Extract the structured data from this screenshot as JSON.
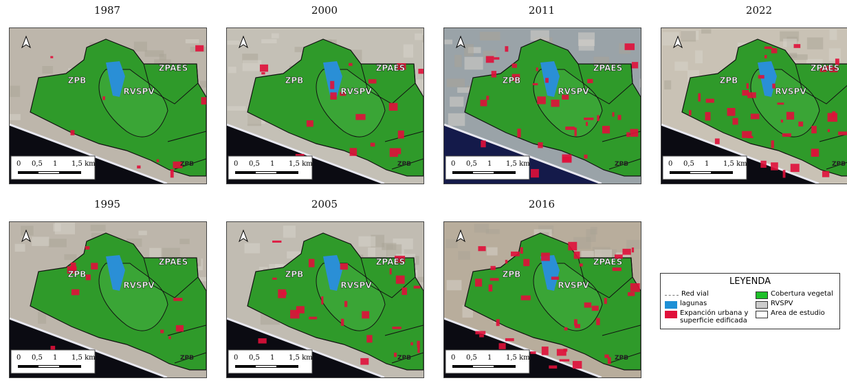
{
  "panels": [
    {
      "year": "1987"
    },
    {
      "year": "2000"
    },
    {
      "year": "2011"
    },
    {
      "year": "2022"
    },
    {
      "year": "1995"
    },
    {
      "year": "2005"
    },
    {
      "year": "2016"
    }
  ],
  "zone_labels": {
    "zpb": "ZPB",
    "rvspv": "RVSPV",
    "zpaes": "ZPAES",
    "zpb_small": "ZPB"
  },
  "scale_bar": [
    "0",
    "0,5",
    "1",
    "1,5 km"
  ],
  "legend": {
    "title": "LEYENDA",
    "items": [
      {
        "label": "Red vial"
      },
      {
        "label": "Cobertura vegetal"
      },
      {
        "label": "lagunas"
      },
      {
        "label": "RVSPV"
      },
      {
        "label": "Expanción urbana y superficie edificada"
      },
      {
        "label": "Area de estudio"
      }
    ]
  }
}
